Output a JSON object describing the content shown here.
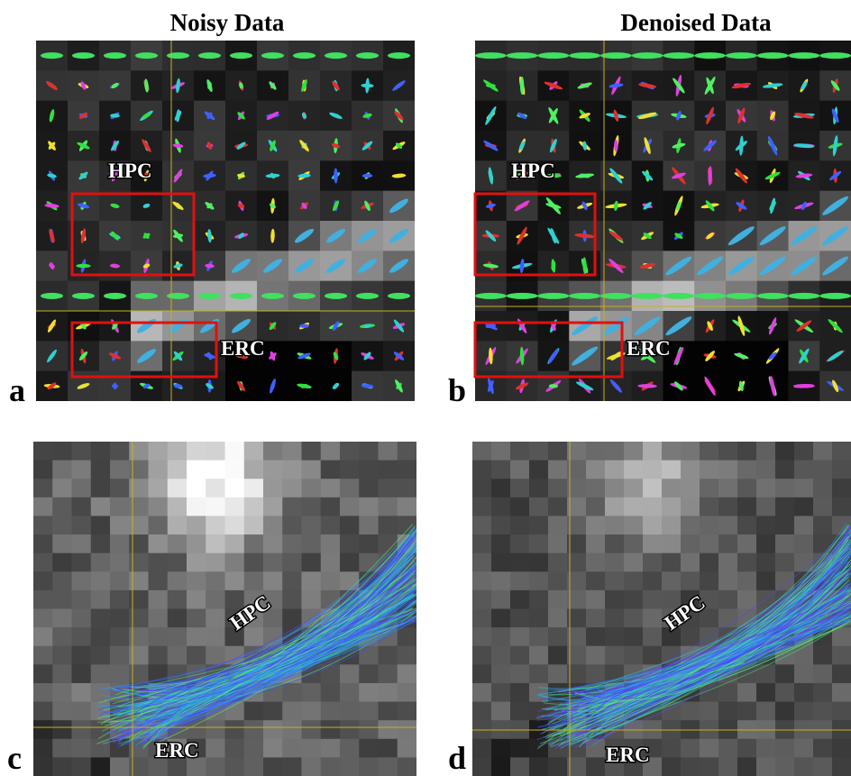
{
  "titles": [
    "Noisy Data",
    "Denoised Data"
  ],
  "panels": [
    {
      "label": "a",
      "hpc": "HPC",
      "erc": "ERC"
    },
    {
      "label": "b",
      "hpc": "HPC",
      "erc": "ERC"
    },
    {
      "label": "c",
      "hpc": "HPC",
      "erc": "ERC"
    },
    {
      "label": "d",
      "hpc": "HPC",
      "erc": "ERC"
    }
  ]
}
